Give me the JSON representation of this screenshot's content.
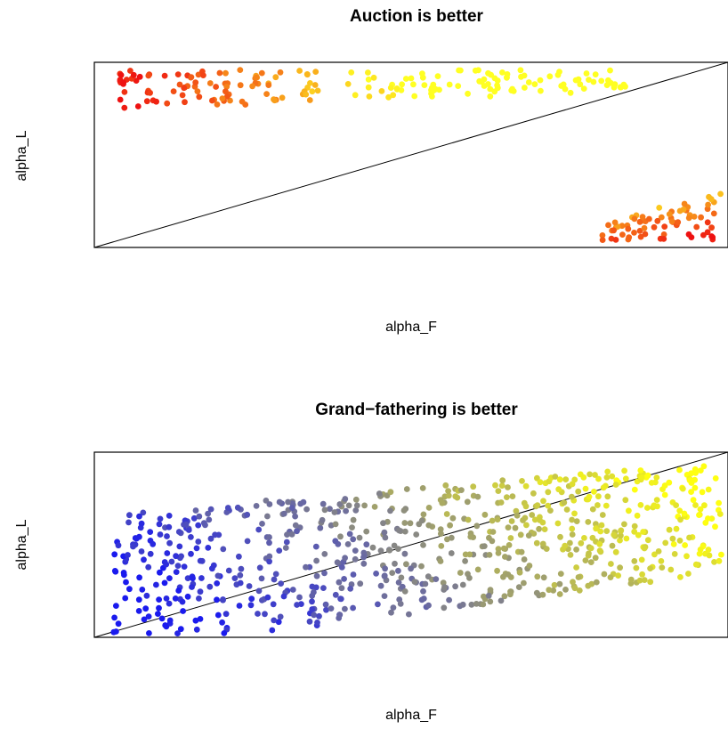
{
  "chart_data": [
    {
      "type": "scatter",
      "title": "Auction is better",
      "xlabel": "alpha_F",
      "ylabel": "alpha_L",
      "xlim": [
        0,
        1
      ],
      "ylim": [
        0,
        1
      ],
      "axes_ticks": false,
      "grid": false,
      "reference_line": {
        "from": [
          0,
          0
        ],
        "to": [
          1,
          1
        ]
      },
      "color_scale": {
        "low": "#ee1111",
        "high": "#ffff22"
      },
      "clusters": [
        {
          "x_range": [
            0.04,
            0.84
          ],
          "y_range": [
            0.78,
            0.96
          ],
          "color_value": "increases with x"
        },
        {
          "x_range": [
            0.8,
            1.0
          ],
          "y_range": [
            0.04,
            0.28
          ],
          "color_value": "decreases with x"
        }
      ]
    },
    {
      "type": "scatter",
      "title": "Grand−fathering is better",
      "xlabel": "alpha_F",
      "ylabel": "alpha_L",
      "xlim": [
        0,
        1
      ],
      "ylim": [
        0,
        1
      ],
      "axes_ticks": false,
      "grid": false,
      "reference_line": {
        "from": [
          0,
          0
        ],
        "to": [
          1,
          1
        ]
      },
      "color_scale": {
        "low": "#1a1aee",
        "high": "#ffff11"
      },
      "clusters": [
        {
          "x_range": [
            0.03,
            0.99
          ],
          "y_range": [
            0.02,
            0.95
          ],
          "color_value": "increases with x"
        }
      ]
    }
  ]
}
